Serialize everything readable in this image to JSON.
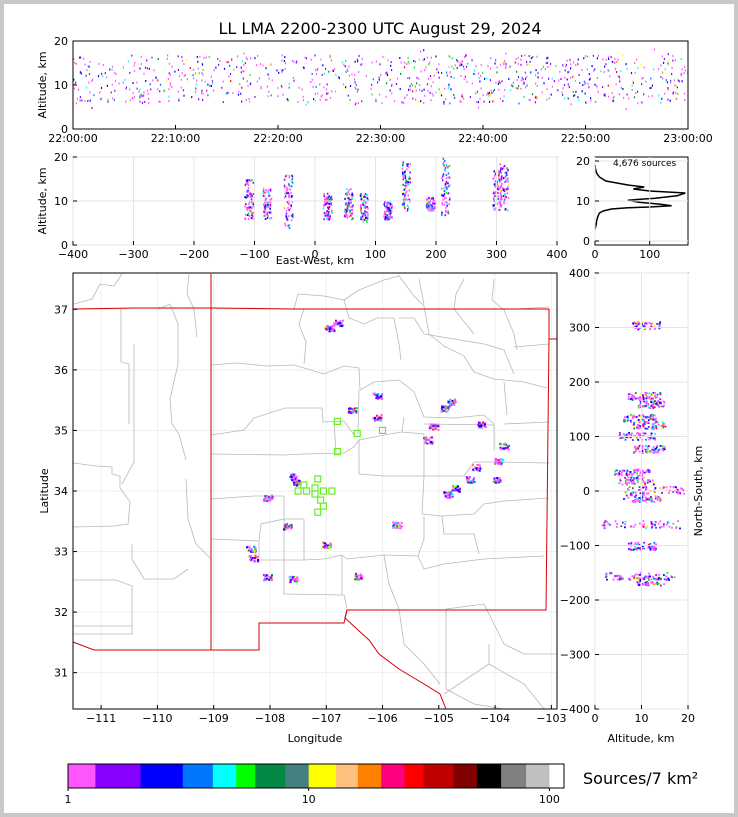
{
  "chart_data": [
    {
      "panel": "altitude-vs-time",
      "type": "scatter",
      "title": "LL LMA 2200-2300 UTC August 29, 2024",
      "ylabel": "Altitude, km",
      "xlim": [
        "22:00:00",
        "23:00:00"
      ],
      "ylim": [
        0,
        20
      ],
      "xticks": [
        "22:00:00",
        "22:10:00",
        "22:20:00",
        "22:30:00",
        "22:40:00",
        "22:50:00",
        "23:00:00"
      ],
      "yticks": [
        0,
        10,
        20
      ],
      "description_note": "Dense band of VHF sources between about 5 and 18 km across the whole hour"
    },
    {
      "panel": "altitude-vs-east-west",
      "type": "scatter",
      "xlabel": "East-West, km",
      "ylabel": "Altitude, km",
      "xlim": [
        -400,
        400
      ],
      "ylim": [
        0,
        20
      ],
      "xticks": [
        -400,
        -300,
        -200,
        -100,
        0,
        100,
        200,
        300,
        400
      ],
      "yticks": [
        0,
        10,
        20
      ],
      "clusters": [
        {
          "x": -110,
          "y": [
            6,
            15
          ]
        },
        {
          "x": -80,
          "y": [
            6,
            13
          ]
        },
        {
          "x": -45,
          "y": [
            4,
            16
          ]
        },
        {
          "x": 20,
          "y": [
            6,
            12
          ]
        },
        {
          "x": 55,
          "y": [
            6,
            13
          ]
        },
        {
          "x": 80,
          "y": [
            5,
            12
          ]
        },
        {
          "x": 120,
          "y": [
            6,
            10
          ]
        },
        {
          "x": 150,
          "y": [
            8,
            19
          ]
        },
        {
          "x": 190,
          "y": [
            8,
            11
          ]
        },
        {
          "x": 215,
          "y": [
            7,
            20
          ]
        },
        {
          "x": 300,
          "y": [
            8,
            17
          ]
        },
        {
          "x": 312,
          "y": [
            8,
            19
          ]
        }
      ]
    },
    {
      "panel": "altitude-histogram",
      "type": "line",
      "annotation": "4,676 sources",
      "xlim": [
        0,
        170
      ],
      "ylim": [
        0,
        20
      ],
      "xticks": [
        0,
        100
      ],
      "yticks": [
        0,
        10,
        20
      ],
      "x": [
        0,
        2,
        3,
        5,
        8,
        15,
        30,
        60,
        100,
        140,
        120,
        80,
        60,
        110,
        150,
        165,
        100,
        70,
        90,
        60,
        40,
        20,
        8,
        3,
        1,
        0
      ],
      "y": [
        3,
        4,
        5,
        6,
        7,
        7.5,
        8,
        8.3,
        8.5,
        8.8,
        9.2,
        9.7,
        10.2,
        10.7,
        11.3,
        12,
        12.5,
        13,
        13.5,
        14,
        14.5,
        15,
        16,
        17,
        18,
        19
      ]
    },
    {
      "panel": "plan-view-map",
      "type": "scatter",
      "xlabel": "Longitude",
      "ylabel": "Latitude",
      "xlim": [
        -111.5,
        -102.9
      ],
      "ylim": [
        30.4,
        37.6
      ],
      "xticks": [
        -111,
        -110,
        -109,
        -108,
        -107,
        -106,
        -105,
        -104,
        -103
      ],
      "yticks": [
        31,
        32,
        33,
        34,
        35,
        36,
        37
      ],
      "stations": [
        [
          -106.8,
          35.15
        ],
        [
          -106.45,
          34.95
        ],
        [
          -106.0,
          35.0
        ],
        [
          -106.8,
          34.65
        ],
        [
          -107.15,
          34.2
        ],
        [
          -107.2,
          34.05
        ],
        [
          -107.4,
          34.1
        ],
        [
          -107.35,
          34.0
        ],
        [
          -107.2,
          33.95
        ],
        [
          -107.05,
          34.0
        ],
        [
          -107.1,
          33.85
        ],
        [
          -106.9,
          34.0
        ],
        [
          -107.05,
          33.75
        ],
        [
          -107.15,
          33.65
        ],
        [
          -107.5,
          34.0
        ]
      ],
      "clusters": [
        [
          -106.8,
          36.78
        ],
        [
          -106.95,
          36.7
        ],
        [
          -106.1,
          35.58
        ],
        [
          -106.55,
          35.35
        ],
        [
          -106.1,
          35.22
        ],
        [
          -104.8,
          35.48
        ],
        [
          -104.9,
          35.37
        ],
        [
          -105.1,
          35.07
        ],
        [
          -105.2,
          34.85
        ],
        [
          -104.25,
          35.1
        ],
        [
          -103.85,
          34.75
        ],
        [
          -103.95,
          34.5
        ],
        [
          -104.35,
          34.4
        ],
        [
          -104.45,
          34.2
        ],
        [
          -104.7,
          34.05
        ],
        [
          -104.85,
          33.95
        ],
        [
          -104.0,
          34.2
        ],
        [
          -105.75,
          33.45
        ],
        [
          -107.6,
          34.25
        ],
        [
          -107.55,
          34.15
        ],
        [
          -108.05,
          33.9
        ],
        [
          -107.7,
          33.42
        ],
        [
          -107.0,
          33.12
        ],
        [
          -108.35,
          33.05
        ],
        [
          -108.3,
          32.9
        ],
        [
          -108.05,
          32.58
        ],
        [
          -107.6,
          32.55
        ],
        [
          -106.45,
          32.6
        ]
      ]
    },
    {
      "panel": "north-south-vs-altitude",
      "type": "scatter",
      "xlabel": "Altitude, km",
      "ylabel": "North-South, km",
      "xlim": [
        0,
        20
      ],
      "ylim": [
        -400,
        400
      ],
      "xticks": [
        0,
        10,
        20
      ],
      "yticks": [
        -400,
        -300,
        -200,
        -100,
        0,
        100,
        200,
        300,
        400
      ],
      "clusters": [
        {
          "y": 305,
          "x": [
            8,
            14
          ]
        },
        {
          "y": 175,
          "x": [
            7,
            14
          ]
        },
        {
          "y": 160,
          "x": [
            9,
            15
          ]
        },
        {
          "y": 135,
          "x": [
            6,
            13
          ]
        },
        {
          "y": 122,
          "x": [
            8,
            15
          ]
        },
        {
          "y": 102,
          "x": [
            5,
            13
          ]
        },
        {
          "y": 78,
          "x": [
            8,
            15
          ]
        },
        {
          "y": 35,
          "x": [
            4,
            12
          ]
        },
        {
          "y": 20,
          "x": [
            5,
            13
          ]
        },
        {
          "y": 3,
          "x": [
            6,
            19
          ]
        },
        {
          "y": -12,
          "x": [
            6,
            14
          ]
        },
        {
          "y": -60,
          "x": [
            1,
            19
          ]
        },
        {
          "y": -100,
          "x": [
            7,
            13
          ]
        },
        {
          "y": -155,
          "x": [
            2,
            17
          ]
        },
        {
          "y": -165,
          "x": [
            8,
            15
          ]
        }
      ]
    }
  ],
  "colorbar": {
    "unit_label": "Sources/7 km²",
    "tick_labels": [
      "1",
      "10",
      "100"
    ],
    "colors": [
      "#ff55ff",
      "#8800ff",
      "#0000ff",
      "#0077ff",
      "#00ffff",
      "#00ff00",
      "#008844",
      "#448080",
      "#ffff00",
      "#ffc080",
      "#ff8000",
      "#ff0080",
      "#ff0000",
      "#c00000",
      "#800000",
      "#000000",
      "#808080",
      "#c0c0c0",
      "#ffffff"
    ],
    "bounds": [
      1,
      1.3,
      2,
      3,
      4,
      5,
      6,
      8,
      10,
      13,
      16,
      20,
      25,
      30,
      40,
      50,
      63,
      80,
      100,
      115
    ]
  }
}
